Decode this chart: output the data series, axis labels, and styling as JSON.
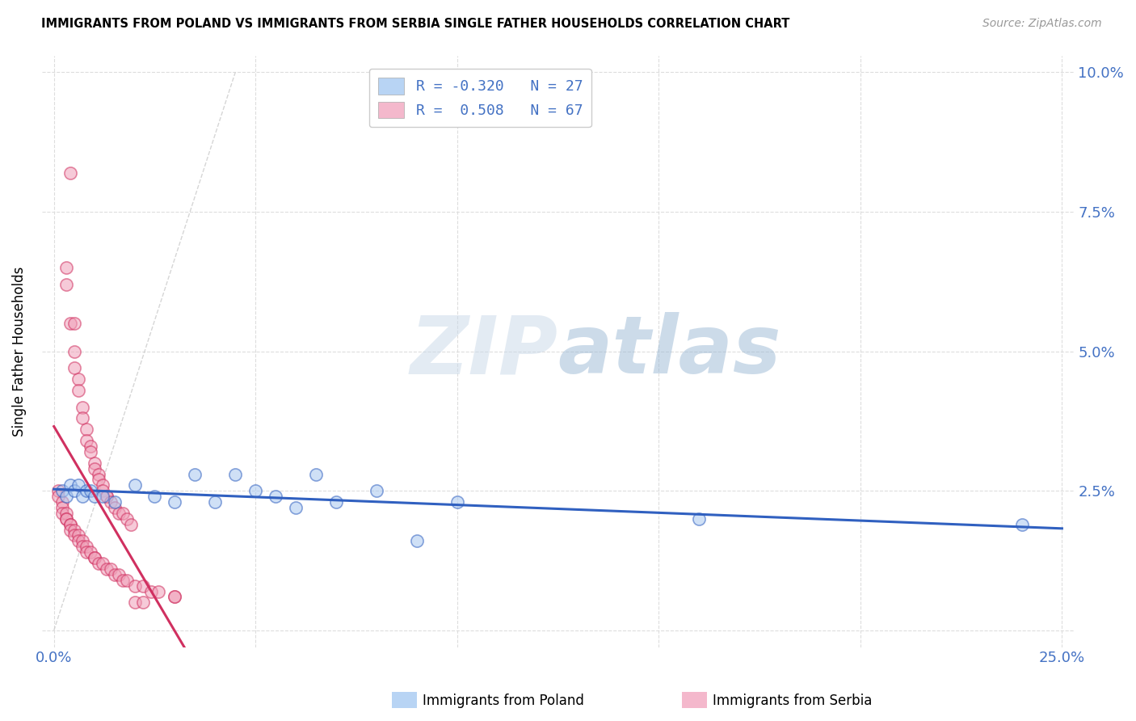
{
  "title": "IMMIGRANTS FROM POLAND VS IMMIGRANTS FROM SERBIA SINGLE FATHER HOUSEHOLDS CORRELATION CHART",
  "source": "Source: ZipAtlas.com",
  "ylabel": "Single Father Households",
  "xlim": [
    0.0,
    0.25
  ],
  "ylim": [
    0.0,
    0.1
  ],
  "xtick_positions": [
    0.0,
    0.05,
    0.1,
    0.15,
    0.2,
    0.25
  ],
  "xtick_labels": [
    "0.0%",
    "",
    "",
    "",
    "",
    "25.0%"
  ],
  "ytick_positions": [
    0.0,
    0.025,
    0.05,
    0.075,
    0.1
  ],
  "ytick_labels_right": [
    "",
    "2.5%",
    "5.0%",
    "7.5%",
    "10.0%"
  ],
  "poland_color": "#a8c8f0",
  "serbia_color": "#f0a0b8",
  "poland_trend_color": "#3060c0",
  "serbia_trend_color": "#d03060",
  "diagonal_color": "#cccccc",
  "watermark_zip": "ZIP",
  "watermark_atlas": "atlas",
  "legend_poland_color": "#b8d4f4",
  "legend_serbia_color": "#f4b8cc",
  "poland_scatter": [
    [
      0.002,
      0.025
    ],
    [
      0.003,
      0.024
    ],
    [
      0.004,
      0.026
    ],
    [
      0.005,
      0.025
    ],
    [
      0.006,
      0.026
    ],
    [
      0.007,
      0.024
    ],
    [
      0.008,
      0.025
    ],
    [
      0.009,
      0.025
    ],
    [
      0.01,
      0.024
    ],
    [
      0.012,
      0.024
    ],
    [
      0.015,
      0.023
    ],
    [
      0.02,
      0.026
    ],
    [
      0.025,
      0.024
    ],
    [
      0.03,
      0.023
    ],
    [
      0.035,
      0.028
    ],
    [
      0.04,
      0.023
    ],
    [
      0.045,
      0.028
    ],
    [
      0.05,
      0.025
    ],
    [
      0.055,
      0.024
    ],
    [
      0.06,
      0.022
    ],
    [
      0.065,
      0.028
    ],
    [
      0.07,
      0.023
    ],
    [
      0.08,
      0.025
    ],
    [
      0.09,
      0.016
    ],
    [
      0.1,
      0.023
    ],
    [
      0.16,
      0.02
    ],
    [
      0.24,
      0.019
    ]
  ],
  "serbia_scatter_high": [
    [
      0.004,
      0.082
    ],
    [
      0.003,
      0.065
    ],
    [
      0.003,
      0.062
    ],
    [
      0.004,
      0.055
    ],
    [
      0.005,
      0.055
    ],
    [
      0.005,
      0.05
    ],
    [
      0.005,
      0.047
    ],
    [
      0.006,
      0.045
    ],
    [
      0.006,
      0.043
    ],
    [
      0.007,
      0.04
    ],
    [
      0.007,
      0.038
    ],
    [
      0.008,
      0.036
    ],
    [
      0.008,
      0.034
    ],
    [
      0.009,
      0.033
    ],
    [
      0.009,
      0.032
    ],
    [
      0.01,
      0.03
    ],
    [
      0.01,
      0.029
    ],
    [
      0.011,
      0.028
    ],
    [
      0.011,
      0.027
    ],
    [
      0.012,
      0.026
    ],
    [
      0.012,
      0.025
    ],
    [
      0.013,
      0.024
    ],
    [
      0.013,
      0.024
    ],
    [
      0.014,
      0.023
    ],
    [
      0.015,
      0.022
    ],
    [
      0.016,
      0.021
    ],
    [
      0.017,
      0.021
    ],
    [
      0.018,
      0.02
    ],
    [
      0.019,
      0.019
    ]
  ],
  "serbia_scatter_low": [
    [
      0.001,
      0.025
    ],
    [
      0.001,
      0.024
    ],
    [
      0.002,
      0.023
    ],
    [
      0.002,
      0.022
    ],
    [
      0.002,
      0.021
    ],
    [
      0.003,
      0.021
    ],
    [
      0.003,
      0.02
    ],
    [
      0.003,
      0.02
    ],
    [
      0.004,
      0.019
    ],
    [
      0.004,
      0.019
    ],
    [
      0.004,
      0.018
    ],
    [
      0.005,
      0.018
    ],
    [
      0.005,
      0.017
    ],
    [
      0.006,
      0.017
    ],
    [
      0.006,
      0.016
    ],
    [
      0.007,
      0.016
    ],
    [
      0.007,
      0.015
    ],
    [
      0.008,
      0.015
    ],
    [
      0.008,
      0.014
    ],
    [
      0.009,
      0.014
    ],
    [
      0.01,
      0.013
    ],
    [
      0.01,
      0.013
    ],
    [
      0.011,
      0.012
    ],
    [
      0.012,
      0.012
    ],
    [
      0.013,
      0.011
    ],
    [
      0.014,
      0.011
    ],
    [
      0.015,
      0.01
    ],
    [
      0.016,
      0.01
    ],
    [
      0.017,
      0.009
    ],
    [
      0.018,
      0.009
    ],
    [
      0.02,
      0.008
    ],
    [
      0.022,
      0.008
    ],
    [
      0.024,
      0.007
    ],
    [
      0.026,
      0.007
    ],
    [
      0.03,
      0.006
    ],
    [
      0.03,
      0.006
    ],
    [
      0.02,
      0.005
    ],
    [
      0.022,
      0.005
    ]
  ]
}
